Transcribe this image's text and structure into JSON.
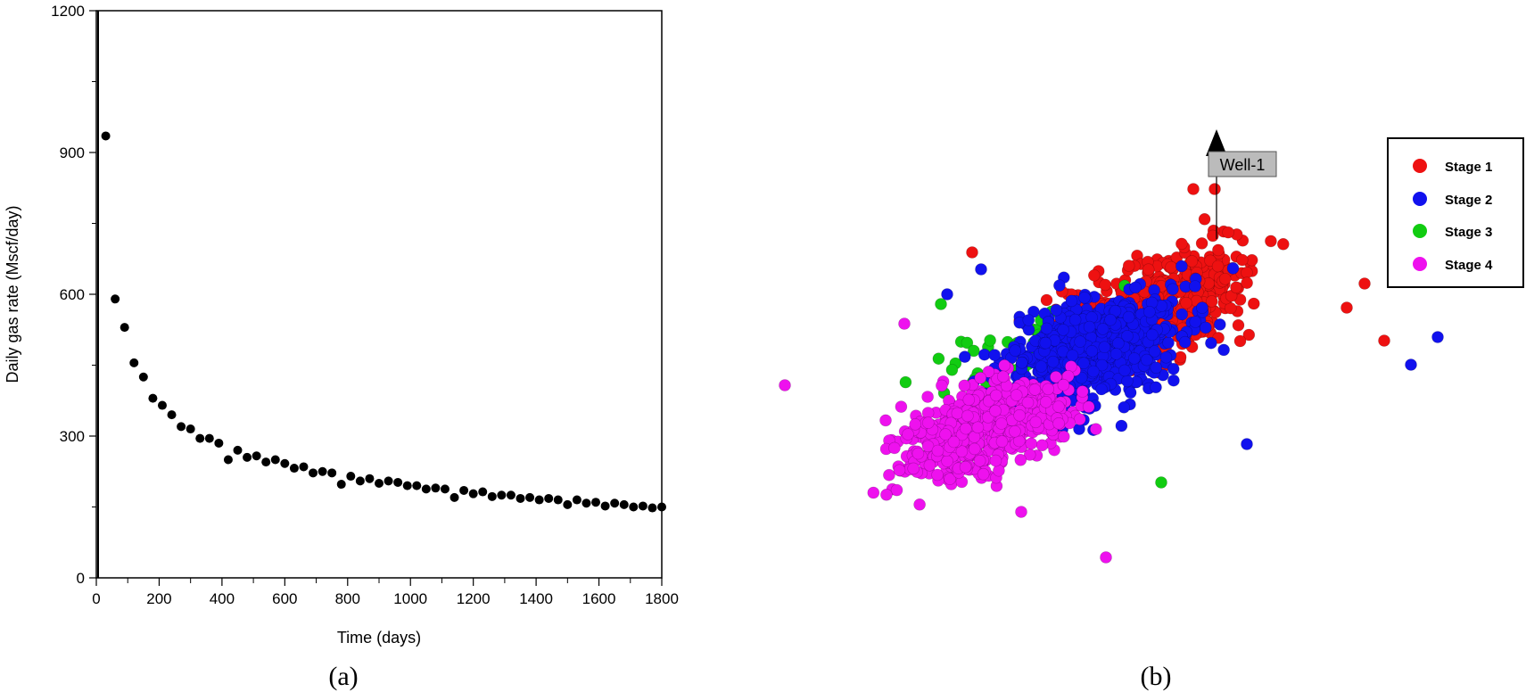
{
  "chart_data": [
    {
      "type": "scatter",
      "panel_label": "(a)",
      "title": "",
      "xlabel": "Time (days)",
      "ylabel": "Daily gas rate (Mscf/day)",
      "xlim": [
        0,
        1800
      ],
      "ylim": [
        0,
        1200
      ],
      "x_ticks": [
        0,
        200,
        400,
        600,
        800,
        1000,
        1200,
        1400,
        1600,
        1800
      ],
      "y_ticks": [
        0,
        300,
        600,
        900,
        1200
      ],
      "marker_color": "#000000",
      "grid": false,
      "series": [
        {
          "x": [
            30,
            60,
            90,
            120,
            150,
            180,
            210,
            240,
            270,
            300,
            330,
            360,
            390,
            420,
            450,
            480,
            510,
            540,
            570,
            600,
            630,
            660,
            690,
            720,
            750,
            780,
            810,
            840,
            870,
            900,
            930,
            960,
            990,
            1020,
            1050,
            1080,
            1110,
            1140,
            1170,
            1200,
            1230,
            1260,
            1290,
            1320,
            1350,
            1380,
            1410,
            1440,
            1470,
            1500,
            1530,
            1560,
            1590,
            1620,
            1650,
            1680,
            1710,
            1740,
            1770,
            1800
          ],
          "y": [
            935,
            590,
            530,
            455,
            425,
            380,
            365,
            345,
            320,
            315,
            295,
            295,
            285,
            250,
            270,
            255,
            258,
            245,
            250,
            242,
            232,
            235,
            222,
            225,
            222,
            198,
            215,
            205,
            210,
            200,
            205,
            202,
            195,
            195,
            188,
            190,
            188,
            170,
            185,
            178,
            182,
            172,
            175,
            175,
            168,
            170,
            165,
            168,
            165,
            155,
            165,
            158,
            160,
            152,
            158,
            155,
            150,
            152,
            148,
            150
          ]
        }
      ]
    },
    {
      "type": "scatter",
      "panel_label": "(b)",
      "title": "",
      "well_label": "Well-1",
      "legend_position": "top-right",
      "series": [
        {
          "name": "Stage 1",
          "color": "#ee1111"
        },
        {
          "name": "Stage 2",
          "color": "#1111ee"
        },
        {
          "name": "Stage 3",
          "color": "#11cc11"
        },
        {
          "name": "Stage 4",
          "color": "#ee11ee"
        }
      ]
    }
  ]
}
